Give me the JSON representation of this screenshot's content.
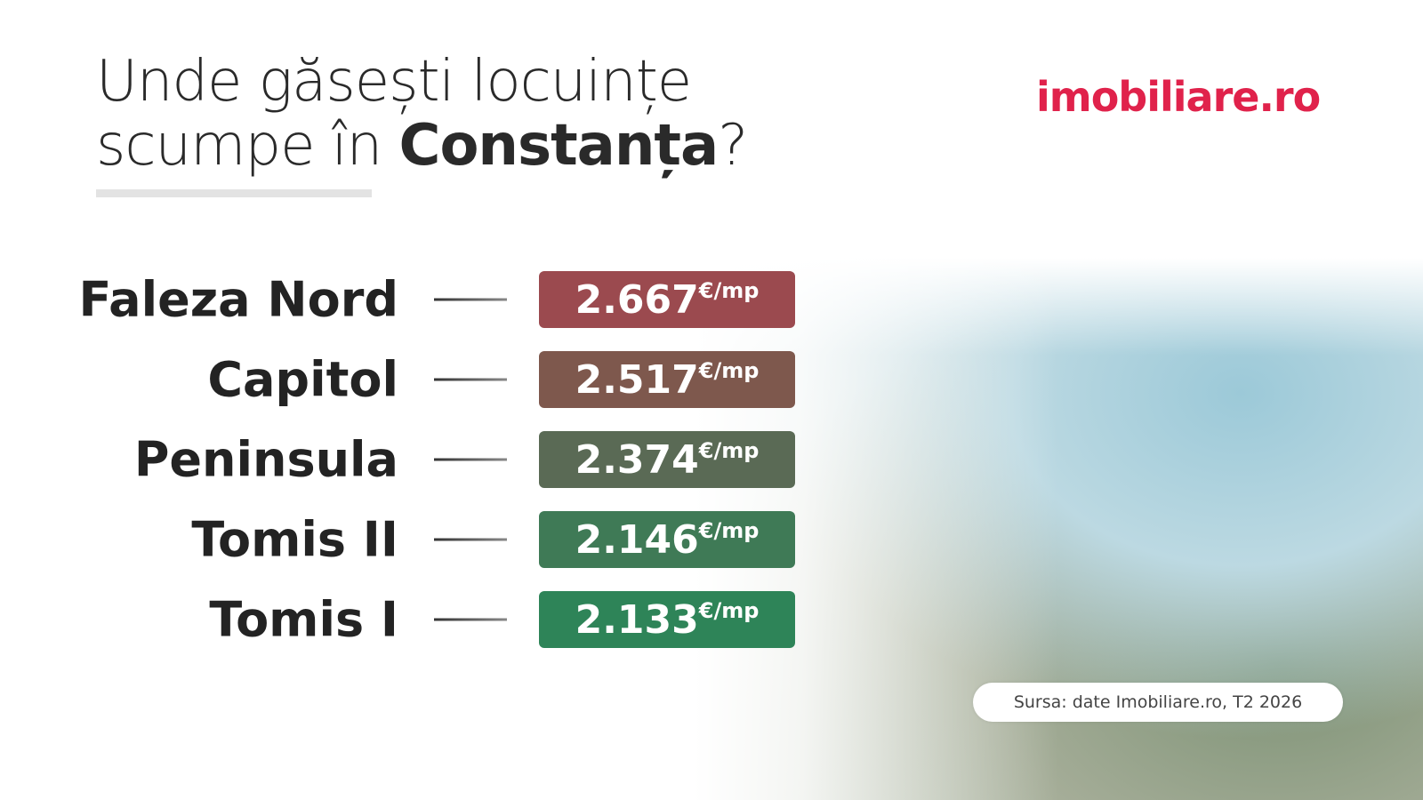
{
  "header": {
    "title_line1": "Unde găsești locuințe",
    "title_line2_prefix": "scumpe în",
    "title_city": "Constanța",
    "title_suffix": "?",
    "logo": "imobiliare.ro"
  },
  "unit": "€/mp",
  "rows": [
    {
      "label": "Faleza Nord",
      "value": "2.667",
      "color": "#9b4a4f"
    },
    {
      "label": "Capitol",
      "value": "2.517",
      "color": "#7e584d"
    },
    {
      "label": "Peninsula",
      "value": "2.374",
      "color": "#5a6a55"
    },
    {
      "label": "Tomis II",
      "value": "2.146",
      "color": "#3f7a56"
    },
    {
      "label": "Tomis I",
      "value": "2.133",
      "color": "#2e8458"
    }
  ],
  "source": "Sursa: date Imobiliare.ro, T2 2026"
}
